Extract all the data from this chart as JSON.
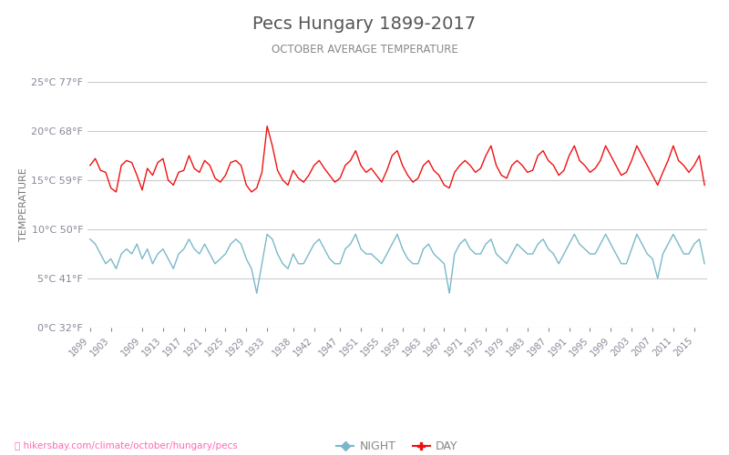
{
  "title": "Pecs Hungary 1899-2017",
  "subtitle": "OCTOBER AVERAGE TEMPERATURE",
  "ylabel": "TEMPERATURE",
  "xlabel_url": "hikersbay.com/climate/october/hungary/pecs",
  "years_start": 1899,
  "years_end": 2017,
  "ylim": [
    0,
    25
  ],
  "yticks_c": [
    0,
    5,
    10,
    15,
    20,
    25
  ],
  "ytick_labels": [
    "0°C 32°F",
    "5°C 41°F",
    "10°C 50°F",
    "15°C 59°F",
    "20°C 68°F",
    "25°C 77°F"
  ],
  "ytick_colors": [
    "#4444ff",
    "#44bb44",
    "#44bb44",
    "#44bb44",
    "#ff44aa",
    "#ff44aa"
  ],
  "day_color": "#ee1111",
  "night_color": "#7ab8c8",
  "bg_color": "#ffffff",
  "grid_color": "#cccccc",
  "title_color": "#555555",
  "subtitle_color": "#888888",
  "ylabel_color": "#777777",
  "url_color": "#ff69b4",
  "legend_night_color": "#7ab8c8",
  "legend_day_color": "#ee1111",
  "xtick_color": "#888899",
  "xtick_years": [
    1899,
    1903,
    1909,
    1913,
    1917,
    1921,
    1925,
    1929,
    1933,
    1938,
    1942,
    1947,
    1951,
    1955,
    1959,
    1963,
    1967,
    1971,
    1975,
    1979,
    1983,
    1987,
    1991,
    1995,
    1999,
    2003,
    2007,
    2011,
    2015
  ],
  "day_temps": [
    16.5,
    17.2,
    16.0,
    15.8,
    14.2,
    13.8,
    16.5,
    17.0,
    16.8,
    15.5,
    14.0,
    16.2,
    15.5,
    16.8,
    17.2,
    15.0,
    14.5,
    15.8,
    16.0,
    17.5,
    16.2,
    15.8,
    17.0,
    16.5,
    15.2,
    14.8,
    15.5,
    16.8,
    17.0,
    16.5,
    14.5,
    13.8,
    14.2,
    15.8,
    20.5,
    18.5,
    16.0,
    15.0,
    14.5,
    16.0,
    15.2,
    14.8,
    15.5,
    16.5,
    17.0,
    16.2,
    15.5,
    14.8,
    15.2,
    16.5,
    17.0,
    18.0,
    16.5,
    15.8,
    16.2,
    15.5,
    14.8,
    16.0,
    17.5,
    18.0,
    16.5,
    15.5,
    14.8,
    15.2,
    16.5,
    17.0,
    16.0,
    15.5,
    14.5,
    14.2,
    15.8,
    16.5,
    17.0,
    16.5,
    15.8,
    16.2,
    17.5,
    18.5,
    16.5,
    15.5,
    15.2,
    16.5,
    17.0,
    16.5,
    15.8,
    16.0,
    17.5,
    18.0,
    17.0,
    16.5,
    15.5,
    16.0,
    17.5,
    18.5,
    17.0,
    16.5,
    15.8,
    16.2,
    17.0,
    18.5,
    17.5,
    16.5,
    15.5,
    15.8,
    17.0,
    18.5,
    17.5,
    16.5,
    15.5,
    14.5,
    15.8,
    17.0,
    18.5,
    17.0,
    16.5,
    15.8,
    16.5,
    17.5,
    14.5
  ],
  "night_temps": [
    9.0,
    8.5,
    7.5,
    6.5,
    7.0,
    6.0,
    7.5,
    8.0,
    7.5,
    8.5,
    7.0,
    8.0,
    6.5,
    7.5,
    8.0,
    7.0,
    6.0,
    7.5,
    8.0,
    9.0,
    8.0,
    7.5,
    8.5,
    7.5,
    6.5,
    7.0,
    7.5,
    8.5,
    9.0,
    8.5,
    7.0,
    6.0,
    3.5,
    6.5,
    9.5,
    9.0,
    7.5,
    6.5,
    6.0,
    7.5,
    6.5,
    6.5,
    7.5,
    8.5,
    9.0,
    8.0,
    7.0,
    6.5,
    6.5,
    8.0,
    8.5,
    9.5,
    8.0,
    7.5,
    7.5,
    7.0,
    6.5,
    7.5,
    8.5,
    9.5,
    8.0,
    7.0,
    6.5,
    6.5,
    8.0,
    8.5,
    7.5,
    7.0,
    6.5,
    3.5,
    7.5,
    8.5,
    9.0,
    8.0,
    7.5,
    7.5,
    8.5,
    9.0,
    7.5,
    7.0,
    6.5,
    7.5,
    8.5,
    8.0,
    7.5,
    7.5,
    8.5,
    9.0,
    8.0,
    7.5,
    6.5,
    7.5,
    8.5,
    9.5,
    8.5,
    8.0,
    7.5,
    7.5,
    8.5,
    9.5,
    8.5,
    7.5,
    6.5,
    6.5,
    8.0,
    9.5,
    8.5,
    7.5,
    7.0,
    5.0,
    7.5,
    8.5,
    9.5,
    8.5,
    7.5,
    7.5,
    8.5,
    9.0,
    6.5
  ]
}
